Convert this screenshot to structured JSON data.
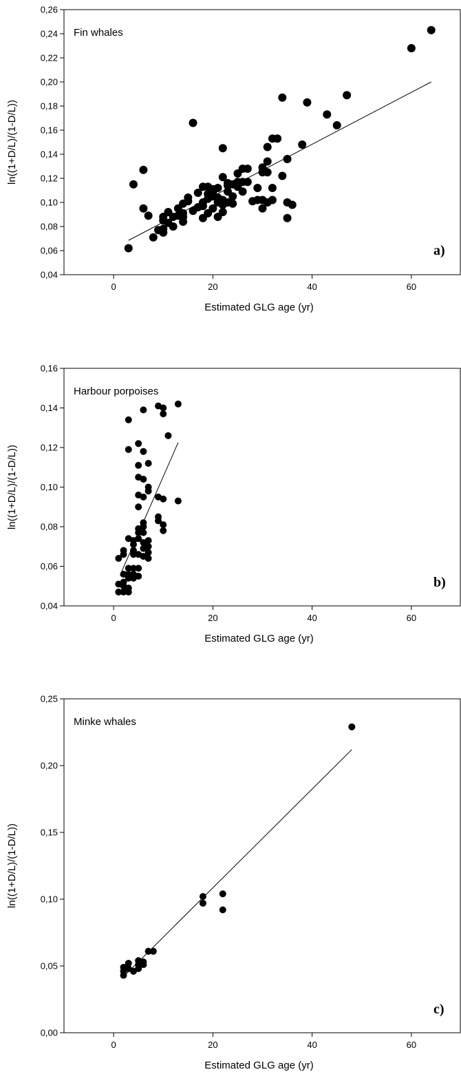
{
  "chart_data": [
    {
      "type": "scatter",
      "title": "Fin whales",
      "panel_label": "a)",
      "xlabel": "Estimated GLG age (yr)",
      "ylabel": "ln((1+D/L)/(1-D/L))",
      "xlim": [
        -10,
        70
      ],
      "ylim": [
        0.04,
        0.26
      ],
      "xticks": [
        0,
        20,
        40,
        60
      ],
      "xtick_labels": [
        "0",
        "20",
        "40",
        "60"
      ],
      "yticks": [
        0.04,
        0.06,
        0.08,
        0.1,
        0.12,
        0.14,
        0.16,
        0.18,
        0.2,
        0.22,
        0.24,
        0.26
      ],
      "ytick_labels": [
        "0,04",
        "0,06",
        "0,08",
        "0,10",
        "0,12",
        "0,14",
        "0,16",
        "0,18",
        "0,20",
        "0,22",
        "0,24",
        "0,26"
      ],
      "grid": false,
      "marker_color": "#000000",
      "fit_line": {
        "x": [
          3,
          64
        ],
        "y": [
          0.0685,
          0.2
        ]
      },
      "points": [
        [
          3,
          0.062
        ],
        [
          4,
          0.115
        ],
        [
          6,
          0.127
        ],
        [
          6,
          0.095
        ],
        [
          7,
          0.089
        ],
        [
          8,
          0.071
        ],
        [
          9,
          0.077
        ],
        [
          10,
          0.078
        ],
        [
          10,
          0.075
        ],
        [
          10,
          0.085
        ],
        [
          10,
          0.088
        ],
        [
          11,
          0.083
        ],
        [
          11,
          0.092
        ],
        [
          12,
          0.08
        ],
        [
          12,
          0.088
        ],
        [
          13,
          0.089
        ],
        [
          13,
          0.095
        ],
        [
          14,
          0.088
        ],
        [
          14,
          0.091
        ],
        [
          14,
          0.084
        ],
        [
          14,
          0.099
        ],
        [
          15,
          0.101
        ],
        [
          15,
          0.104
        ],
        [
          16,
          0.166
        ],
        [
          16,
          0.093
        ],
        [
          17,
          0.096
        ],
        [
          17,
          0.108
        ],
        [
          18,
          0.097
        ],
        [
          18,
          0.087
        ],
        [
          18,
          0.1
        ],
        [
          18,
          0.113
        ],
        [
          19,
          0.091
        ],
        [
          19,
          0.103
        ],
        [
          19,
          0.107
        ],
        [
          19,
          0.113
        ],
        [
          20,
          0.095
        ],
        [
          20,
          0.105
        ],
        [
          20,
          0.108
        ],
        [
          20,
          0.111
        ],
        [
          21,
          0.088
        ],
        [
          21,
          0.1
        ],
        [
          21,
          0.104
        ],
        [
          21,
          0.112
        ],
        [
          22,
          0.092
        ],
        [
          22,
          0.098
        ],
        [
          22,
          0.102
        ],
        [
          22,
          0.121
        ],
        [
          22,
          0.145
        ],
        [
          23,
          0.1
        ],
        [
          23,
          0.109
        ],
        [
          23,
          0.114
        ],
        [
          23,
          0.116
        ],
        [
          24,
          0.099
        ],
        [
          24,
          0.105
        ],
        [
          24,
          0.115
        ],
        [
          25,
          0.113
        ],
        [
          25,
          0.117
        ],
        [
          25,
          0.124
        ],
        [
          26,
          0.109
        ],
        [
          26,
          0.117
        ],
        [
          26,
          0.128
        ],
        [
          27,
          0.117
        ],
        [
          27,
          0.128
        ],
        [
          28,
          0.101
        ],
        [
          29,
          0.102
        ],
        [
          29,
          0.112
        ],
        [
          30,
          0.095
        ],
        [
          30,
          0.102
        ],
        [
          30,
          0.125
        ],
        [
          30,
          0.129
        ],
        [
          31,
          0.1
        ],
        [
          31,
          0.125
        ],
        [
          31,
          0.134
        ],
        [
          31,
          0.146
        ],
        [
          32,
          0.102
        ],
        [
          32,
          0.112
        ],
        [
          32,
          0.153
        ],
        [
          33,
          0.153
        ],
        [
          34,
          0.122
        ],
        [
          34,
          0.187
        ],
        [
          35,
          0.087
        ],
        [
          35,
          0.1
        ],
        [
          35,
          0.136
        ],
        [
          36,
          0.098
        ],
        [
          38,
          0.148
        ],
        [
          39,
          0.183
        ],
        [
          43,
          0.173
        ],
        [
          45,
          0.164
        ],
        [
          47,
          0.189
        ],
        [
          60,
          0.228
        ],
        [
          64,
          0.243
        ]
      ]
    },
    {
      "type": "scatter",
      "title": "Harbour porpoises",
      "panel_label": "b)",
      "xlabel": "Estimated GLG age (yr)",
      "ylabel": "ln((1+D/L)/(1-D/L))",
      "xlim": [
        -10,
        70
      ],
      "ylim": [
        0.04,
        0.16
      ],
      "xticks": [
        0,
        20,
        40,
        60
      ],
      "xtick_labels": [
        "0",
        "20",
        "40",
        "60"
      ],
      "yticks": [
        0.04,
        0.06,
        0.08,
        0.1,
        0.12,
        0.14,
        0.16
      ],
      "ytick_labels": [
        "0,04",
        "0,06",
        "0,08",
        "0,10",
        "0,12",
        "0,14",
        "0,16"
      ],
      "grid": false,
      "marker_color": "#000000",
      "fit_line": {
        "x": [
          1.3,
          13
        ],
        "y": [
          0.0555,
          0.1225
        ]
      },
      "points": [
        [
          1,
          0.047
        ],
        [
          1,
          0.051
        ],
        [
          1,
          0.064
        ],
        [
          2,
          0.047
        ],
        [
          2,
          0.05
        ],
        [
          2,
          0.052
        ],
        [
          2,
          0.056
        ],
        [
          2,
          0.066
        ],
        [
          2,
          0.068
        ],
        [
          3,
          0.047
        ],
        [
          3,
          0.049
        ],
        [
          3,
          0.054
        ],
        [
          3,
          0.056
        ],
        [
          3,
          0.059
        ],
        [
          3,
          0.074
        ],
        [
          3,
          0.119
        ],
        [
          3,
          0.134
        ],
        [
          4,
          0.054
        ],
        [
          4,
          0.056
        ],
        [
          4,
          0.059
        ],
        [
          4,
          0.066
        ],
        [
          4,
          0.068
        ],
        [
          4,
          0.071
        ],
        [
          4,
          0.073
        ],
        [
          5,
          0.055
        ],
        [
          5,
          0.059
        ],
        [
          5,
          0.066
        ],
        [
          5,
          0.074
        ],
        [
          5,
          0.077
        ],
        [
          5,
          0.079
        ],
        [
          5,
          0.09
        ],
        [
          5,
          0.096
        ],
        [
          5,
          0.105
        ],
        [
          5,
          0.111
        ],
        [
          5,
          0.122
        ],
        [
          6,
          0.065
        ],
        [
          6,
          0.069
        ],
        [
          6,
          0.072
        ],
        [
          6,
          0.077
        ],
        [
          6,
          0.08
        ],
        [
          6,
          0.082
        ],
        [
          6,
          0.095
        ],
        [
          6,
          0.104
        ],
        [
          6,
          0.118
        ],
        [
          6,
          0.139
        ],
        [
          7,
          0.064
        ],
        [
          7,
          0.067
        ],
        [
          7,
          0.07
        ],
        [
          7,
          0.073
        ],
        [
          7,
          0.098
        ],
        [
          7,
          0.1
        ],
        [
          7,
          0.112
        ],
        [
          9,
          0.083
        ],
        [
          9,
          0.085
        ],
        [
          9,
          0.095
        ],
        [
          9,
          0.141
        ],
        [
          10,
          0.078
        ],
        [
          10,
          0.081
        ],
        [
          10,
          0.094
        ],
        [
          10,
          0.137
        ],
        [
          10,
          0.14
        ],
        [
          11,
          0.126
        ],
        [
          13,
          0.093
        ],
        [
          13,
          0.142
        ]
      ]
    },
    {
      "type": "scatter",
      "title": "Minke whales",
      "panel_label": "c)",
      "xlabel": "Estimated GLG age (yr)",
      "ylabel": "ln((1+D/L)/(1-D/L))",
      "xlim": [
        -10,
        70
      ],
      "ylim": [
        0.0,
        0.25
      ],
      "xticks": [
        0,
        20,
        40,
        60
      ],
      "xtick_labels": [
        "0",
        "20",
        "40",
        "60"
      ],
      "yticks": [
        0.0,
        0.05,
        0.1,
        0.15,
        0.2,
        0.25
      ],
      "ytick_labels": [
        "0,00",
        "0,05",
        "0,10",
        "0,15",
        "0,20",
        "0,25"
      ],
      "grid": false,
      "marker_color": "#000000",
      "fit_line": {
        "x": [
          2,
          48
        ],
        "y": [
          0.042,
          0.212
        ]
      },
      "points": [
        [
          2,
          0.043
        ],
        [
          2,
          0.046
        ],
        [
          2,
          0.049
        ],
        [
          3,
          0.048
        ],
        [
          3,
          0.052
        ],
        [
          4,
          0.046
        ],
        [
          5,
          0.048
        ],
        [
          5,
          0.051
        ],
        [
          5,
          0.054
        ],
        [
          6,
          0.051
        ],
        [
          6,
          0.053
        ],
        [
          7,
          0.061
        ],
        [
          8,
          0.061
        ],
        [
          18,
          0.097
        ],
        [
          18,
          0.102
        ],
        [
          22,
          0.092
        ],
        [
          22,
          0.104
        ],
        [
          48,
          0.229
        ]
      ]
    }
  ]
}
